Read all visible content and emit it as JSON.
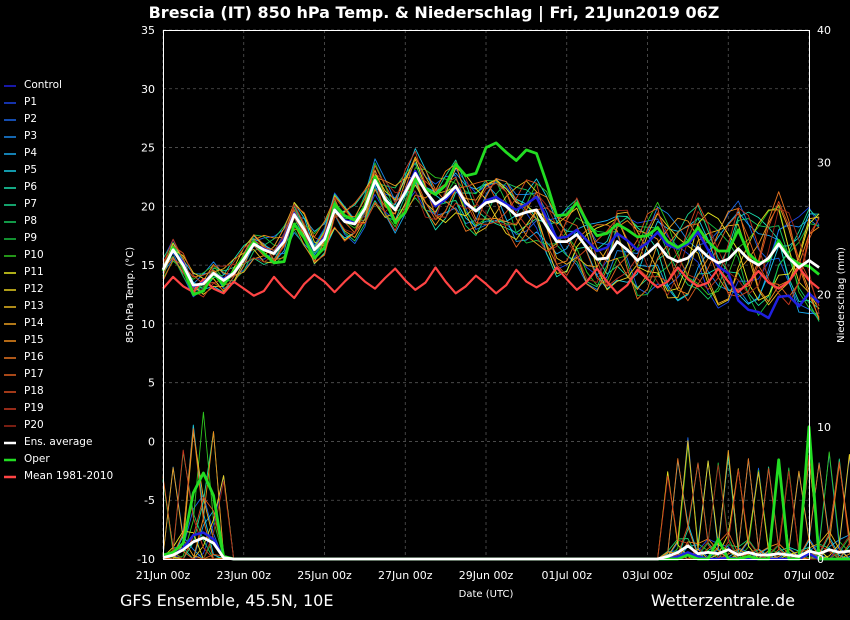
{
  "title": "Brescia  (IT)  850 hPa Temp. & Niederschlag | Fri, 21Jun2019 06Z",
  "footer_left": "GFS Ensemble, 45.5N, 10E",
  "footer_right": "Wetterzentrale.de",
  "chart_data": {
    "type": "line",
    "xlabel": "Date (UTC)",
    "ylabel_left": "850 hPa Temp. (°C)",
    "ylabel_right": "Niederschlag (mm)",
    "ylim_left": [
      -10,
      35
    ],
    "ylim_right": [
      0,
      40
    ],
    "xlim_hours": [
      0,
      384
    ],
    "step_hours": 6,
    "grid": true,
    "yticks_left": [
      "35",
      "30",
      "25",
      "20",
      "15",
      "10",
      "5",
      "0",
      "-5",
      "-10"
    ],
    "yticks_right": [
      "40",
      "30",
      "20",
      "10",
      "0"
    ],
    "x_tick_labels": [
      "21Jun 00z",
      "23Jun 00z",
      "25Jun 00z",
      "27Jun 00z",
      "29Jun 00z",
      "01Jul 00z",
      "03Jul 00z",
      "05Jul 00z",
      "07Jul 00z"
    ],
    "legend": [
      {
        "name": "Control",
        "color": "#2020e0"
      },
      {
        "name": "P1",
        "color": "#1c44e6"
      },
      {
        "name": "P2",
        "color": "#1a66e8"
      },
      {
        "name": "P3",
        "color": "#1a88ea"
      },
      {
        "name": "P4",
        "color": "#1aaaee"
      },
      {
        "name": "P5",
        "color": "#18cce6"
      },
      {
        "name": "P6",
        "color": "#1ae0b0"
      },
      {
        "name": "P7",
        "color": "#1ad890"
      },
      {
        "name": "P8",
        "color": "#18cc60"
      },
      {
        "name": "P9",
        "color": "#18c040"
      },
      {
        "name": "P10",
        "color": "#30c820"
      },
      {
        "name": "P11",
        "color": "#e8e820"
      },
      {
        "name": "P12",
        "color": "#e8d020"
      },
      {
        "name": "P13",
        "color": "#e8b820"
      },
      {
        "name": "P14",
        "color": "#eca020"
      },
      {
        "name": "P15",
        "color": "#f08c1c"
      },
      {
        "name": "P16",
        "color": "#e87420"
      },
      {
        "name": "P17",
        "color": "#e06020"
      },
      {
        "name": "P18",
        "color": "#d84c20"
      },
      {
        "name": "P19",
        "color": "#c83820"
      },
      {
        "name": "P20",
        "color": "#a02818"
      },
      {
        "name": "Ens. average",
        "color": "#ffffff"
      },
      {
        "name": "Oper",
        "color": "#22dd22"
      },
      {
        "name": "Mean 1981-2010",
        "color": "#ff4444"
      }
    ],
    "climatology_temp": [
      13,
      14,
      13.2,
      12.7,
      13.8,
      13,
      12.6,
      13.6,
      13,
      12.4,
      12.8,
      14,
      13,
      12.2,
      13.4,
      14.2,
      13.6,
      12.7,
      13.6,
      14.4,
      13.6,
      13,
      13.9,
      14.7,
      13.7,
      12.9,
      13.5,
      14.8,
      13.6,
      12.6,
      13.2,
      14.1,
      13.4,
      12.6,
      13.3,
      14.6,
      13.6,
      13.1,
      13.6,
      14.8,
      13.8,
      12.9,
      13.6,
      14.7,
      13.6,
      12.6,
      13.3,
      14.6,
      13.8,
      13.1,
      13.6,
      14.8,
      13.8,
      13.2,
      13.5,
      14.7,
      13.6,
      12.7,
      13.5,
      14.5,
      13.5,
      13.0,
      13.6,
      14.8,
      13.7,
      13.0
    ],
    "ens_average_temp": [
      14.6,
      16.3,
      15,
      13.3,
      13.4,
      14.3,
      13.7,
      14.3,
      15.5,
      16.8,
      16.3,
      16,
      17,
      19.3,
      18,
      16.3,
      17.2,
      19.7,
      18.7,
      18.5,
      19.8,
      22.2,
      20.6,
      19.7,
      21.2,
      22.8,
      21.3,
      20.2,
      20.8,
      21.7,
      20.3,
      19.6,
      20.3,
      20.5,
      20,
      19.2,
      19.5,
      19.7,
      18.3,
      17,
      17,
      17.6,
      16.5,
      15.5,
      15.6,
      17,
      16.3,
      15.4,
      16,
      16.8,
      15.7,
      15.3,
      15.6,
      16.5,
      15.7,
      15.2,
      15.5,
      16.4,
      15.5,
      15,
      15.6,
      16.8,
      15.6,
      14.8,
      15.4,
      14.8
    ],
    "oper_temp": [
      14.5,
      16.5,
      14.8,
      12.5,
      12.8,
      14.3,
      13.3,
      14.5,
      15.7,
      17,
      16,
      15.2,
      15.3,
      18.5,
      17.3,
      15.6,
      16.5,
      20.2,
      19.2,
      18.8,
      20,
      22.5,
      20.5,
      18.6,
      19.5,
      22.3,
      21.5,
      21,
      21.8,
      23.6,
      22.6,
      22.8,
      25,
      25.4,
      24.6,
      23.9,
      24.8,
      24.5,
      22,
      19.2,
      19.3,
      20.3,
      18.7,
      17.5,
      17.7,
      18.5,
      18,
      17.4,
      17.5,
      18.2,
      17,
      16.5,
      17,
      18.2,
      17,
      16.2,
      16.2,
      18,
      16,
      15.2,
      15.4,
      17.1,
      15.7,
      15.1,
      14.9,
      14.2
    ],
    "control_temp": [
      14.6,
      16.3,
      15.2,
      13.2,
      13.5,
      14.3,
      13.8,
      14.4,
      15.5,
      16.8,
      16.4,
      16,
      17.2,
      19.4,
      18,
      16.3,
      17.4,
      19.7,
      18.8,
      18.6,
      19.8,
      22.3,
      20.6,
      19.7,
      21.3,
      23,
      21.3,
      20,
      20.6,
      21.5,
      20.2,
      19.6,
      20.5,
      20.8,
      20.2,
      19.7,
      20.2,
      20.8,
      19,
      17.3,
      17.4,
      18,
      17.1,
      16.2,
      16.5,
      17.7,
      17.1,
      16.3,
      16.9,
      17.8,
      16.7,
      16.4,
      16.8,
      17.8,
      16.3,
      14.9,
      14.3,
      12,
      11.2,
      11,
      10.5,
      12.3,
      12.4,
      11.5,
      12.6,
      11.8
    ],
    "oper_precip": [
      0.3,
      0.5,
      1.2,
      5,
      6.5,
      4.8,
      0.2,
      0,
      0,
      0,
      0,
      0,
      0,
      0,
      0,
      0,
      0,
      0,
      0,
      0,
      0,
      0,
      0,
      0,
      0,
      0,
      0,
      0,
      0,
      0,
      0,
      0,
      0,
      0,
      0,
      0,
      0,
      0,
      0,
      0,
      0,
      0,
      0,
      0,
      0,
      0,
      0,
      0,
      0,
      0,
      0,
      0,
      0.3,
      0,
      0,
      1.5,
      0,
      0,
      0.2,
      0,
      0,
      7.5,
      0,
      0,
      10,
      0,
      0,
      0,
      0,
      0,
      0,
      0,
      1.5,
      0,
      0,
      12,
      0,
      0,
      0,
      0
    ],
    "control_precip": [
      0.2,
      0.3,
      0.8,
      1.8,
      2.0,
      1.5,
      0.1,
      0,
      0,
      0,
      0,
      0,
      0,
      0,
      0,
      0,
      0,
      0,
      0,
      0,
      0,
      0,
      0,
      0,
      0,
      0,
      0,
      0,
      0,
      0,
      0,
      0,
      0,
      0,
      0,
      0,
      0,
      0,
      0,
      0,
      0,
      0,
      0,
      0,
      0,
      0,
      0,
      0,
      0,
      0,
      0,
      0.2,
      0.5,
      0.2,
      0,
      0,
      0.1,
      0,
      0,
      0,
      0,
      0,
      0,
      0,
      0.4,
      0,
      0,
      0,
      0,
      0,
      9.5,
      0,
      0,
      0,
      0.3,
      0,
      0,
      0.2,
      0,
      0
    ],
    "avg_precip": [
      0.1,
      0.3,
      0.7,
      1.3,
      1.6,
      1.2,
      0.1,
      0,
      0,
      0,
      0,
      0,
      0,
      0,
      0,
      0,
      0,
      0,
      0,
      0,
      0,
      0,
      0,
      0,
      0,
      0,
      0,
      0,
      0,
      0,
      0,
      0,
      0,
      0,
      0,
      0,
      0,
      0,
      0,
      0,
      0,
      0,
      0,
      0,
      0,
      0,
      0,
      0,
      0,
      0,
      0.2,
      0.5,
      1.0,
      0.4,
      0.5,
      0.4,
      0.7,
      0.3,
      0.5,
      0.3,
      0.3,
      0.4,
      0.3,
      0.2,
      0.6,
      0.4,
      0.7,
      0.5,
      0.6,
      0.4,
      1.0,
      0.6,
      0.4,
      0.6,
      0.9,
      0.5,
      0.4,
      0.8,
      0.5,
      0.6
    ]
  }
}
